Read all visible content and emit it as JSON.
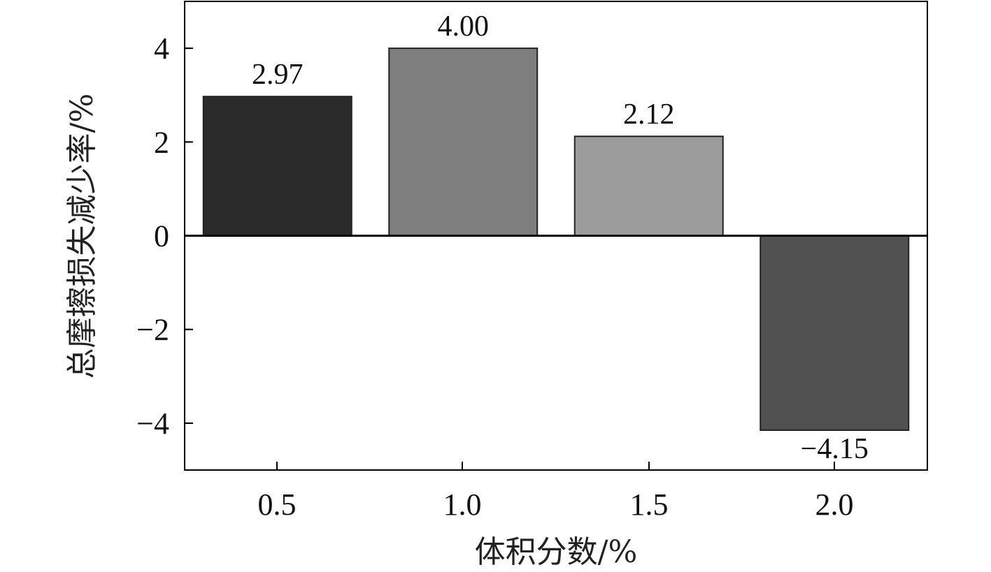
{
  "chart_data": {
    "type": "bar",
    "categories": [
      "0.5",
      "1.0",
      "1.5",
      "2.0"
    ],
    "values": [
      2.97,
      4.0,
      2.12,
      -4.15
    ],
    "value_labels": [
      "2.97",
      "4.00",
      "2.12",
      "−4.15"
    ],
    "bar_colors": [
      "#2a2a2a",
      "#7e7e7e",
      "#9c9c9c",
      "#515151"
    ],
    "xlabel": "体积分数/%",
    "ylabel": "总摩擦损失减少率/%",
    "ylim": [
      -5,
      5
    ],
    "y_ticks": [
      4,
      2,
      0,
      -2,
      -4
    ],
    "y_tick_labels": [
      "4",
      "2",
      "0",
      "−2",
      "−4"
    ],
    "grid": false,
    "zero_line": true
  }
}
